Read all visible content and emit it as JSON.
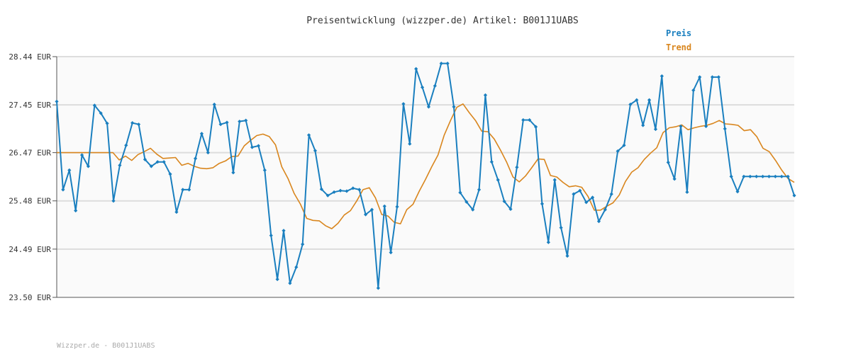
{
  "chart_data": {
    "type": "line",
    "title": "Preisentwicklung (wizzper.de) Artikel: B001J1UABS",
    "footer": "Wizzper.de - B001J1UABS",
    "ylim": [
      23.5,
      28.44
    ],
    "y_ticks": [
      "28.44 EUR",
      "27.45 EUR",
      "26.47 EUR",
      "25.48 EUR",
      "24.49 EUR",
      "23.50 EUR"
    ],
    "grid": true,
    "legend_position": "top-right",
    "colors": {
      "preis": "#1a7fbf",
      "trend": "#d9861e",
      "grid": "#dddddd",
      "axis": "#555555"
    },
    "series": [
      {
        "name": "Preis",
        "values": [
          27.52,
          25.71,
          26.11,
          25.28,
          26.42,
          26.19,
          27.44,
          27.28,
          27.07,
          25.48,
          26.21,
          26.62,
          27.08,
          27.05,
          26.33,
          26.19,
          26.28,
          26.28,
          26.03,
          25.25,
          25.71,
          25.71,
          26.35,
          26.86,
          26.47,
          27.46,
          27.05,
          27.09,
          26.06,
          27.11,
          27.13,
          26.58,
          26.61,
          26.11,
          24.77,
          23.87,
          24.87,
          23.79,
          24.12,
          24.59,
          26.83,
          26.51,
          25.72,
          25.59,
          25.66,
          25.69,
          25.68,
          25.74,
          25.71,
          25.2,
          25.3,
          23.69,
          25.37,
          24.42,
          25.36,
          27.47,
          26.65,
          28.19,
          27.81,
          27.41,
          27.84,
          28.3,
          28.3,
          27.41,
          25.65,
          25.46,
          25.3,
          25.71,
          27.65,
          26.28,
          25.91,
          25.47,
          25.31,
          26.17,
          27.14,
          27.14,
          27.0,
          25.42,
          24.63,
          25.91,
          24.93,
          24.35,
          25.62,
          25.69,
          25.45,
          25.55,
          25.06,
          25.3,
          25.62,
          26.5,
          26.62,
          27.46,
          27.55,
          27.03,
          27.55,
          26.95,
          28.04,
          26.27,
          25.93,
          27.01,
          25.66,
          27.75,
          28.02,
          27.01,
          28.02,
          28.02,
          26.96,
          25.98,
          25.67,
          25.98,
          25.98,
          25.98,
          25.98,
          25.98,
          25.98,
          25.98,
          25.98,
          25.59
        ]
      },
      {
        "name": "Trend",
        "values": [
          26.47,
          26.47,
          26.47,
          26.47,
          26.47,
          26.47,
          26.47,
          26.47,
          26.47,
          26.47,
          26.32,
          26.4,
          26.31,
          26.43,
          26.49,
          26.56,
          26.44,
          26.35,
          26.36,
          26.37,
          26.21,
          26.25,
          26.19,
          26.15,
          26.14,
          26.16,
          26.25,
          26.3,
          26.39,
          26.4,
          26.61,
          26.72,
          26.82,
          26.85,
          26.8,
          26.63,
          26.18,
          25.94,
          25.63,
          25.41,
          25.12,
          25.08,
          25.07,
          24.97,
          24.91,
          25.02,
          25.19,
          25.28,
          25.48,
          25.71,
          25.75,
          25.54,
          25.2,
          25.17,
          25.04,
          25.01,
          25.3,
          25.41,
          25.68,
          25.92,
          26.18,
          26.42,
          26.83,
          27.13,
          27.4,
          27.47,
          27.29,
          27.13,
          26.91,
          26.9,
          26.75,
          26.52,
          26.27,
          25.97,
          25.87,
          25.99,
          26.16,
          26.34,
          26.33,
          26.0,
          25.97,
          25.86,
          25.77,
          25.79,
          25.76,
          25.57,
          25.29,
          25.29,
          25.37,
          25.44,
          25.6,
          25.88,
          26.07,
          26.16,
          26.33,
          26.46,
          26.57,
          26.88,
          26.98,
          27.0,
          27.04,
          26.94,
          26.98,
          27.01,
          27.03,
          27.07,
          27.13,
          27.06,
          27.05,
          27.03,
          26.92,
          26.94,
          26.8,
          26.56,
          26.49,
          26.31,
          26.11,
          25.94,
          25.86
        ]
      }
    ]
  }
}
